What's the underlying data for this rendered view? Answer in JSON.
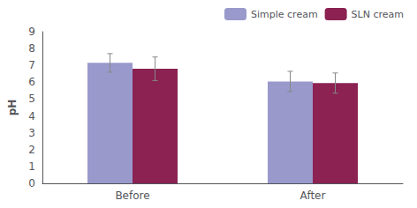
{
  "chart_data": {
    "type": "bar",
    "categories": [
      "Before",
      "After"
    ],
    "series": [
      {
        "name": "Simple cream",
        "color": "#9999CC",
        "values": [
          7.15,
          6.05
        ],
        "errors": [
          0.55,
          0.6
        ]
      },
      {
        "name": "SLN cream",
        "color": "#8B2252",
        "values": [
          6.8,
          5.95
        ],
        "errors": [
          0.7,
          0.6
        ]
      }
    ],
    "ylabel": "pH",
    "ylim": [
      0,
      9
    ],
    "yticks": [
      0,
      1,
      2,
      3,
      4,
      5,
      6,
      7,
      8,
      9
    ],
    "grid": false,
    "legend": "upper right"
  }
}
